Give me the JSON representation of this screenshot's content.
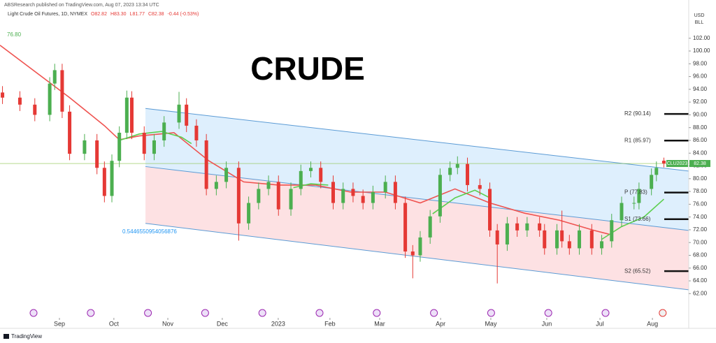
{
  "header": {
    "publisher": "ABSResearch published on TradingView.com, Aug 07, 2023 13:34 UTC",
    "symbol": "Light Crude Oil Futures, 1D, NYMEX",
    "ohlc": [
      "O82.82",
      "H83.30",
      "L81.77",
      "C82.38",
      "-0.44 (-0.53%)"
    ]
  },
  "currency": [
    "USD",
    "BLL"
  ],
  "footer": "TradingView",
  "chart_data": {
    "type": "candlestick",
    "title": "CRUDE",
    "up_color": "#4caf50",
    "down_color": "#e53935",
    "x": [
      1,
      8,
      14,
      20,
      22,
      25,
      28,
      34,
      39,
      42,
      45,
      48,
      51,
      53,
      58,
      62,
      66,
      72,
      75,
      79,
      83,
      87,
      91,
      96,
      100,
      104,
      108,
      112,
      117,
      121,
      125,
      129,
      134,
      138,
      142,
      146,
      150,
      155,
      159,
      163,
      166,
      169,
      173,
      177,
      181,
      184,
      188,
      193,
      197,
      200,
      204,
      208,
      212,
      217,
      219,
      224,
      226,
      229,
      233,
      238,
      242,
      246,
      250,
      255,
      257,
      262,
      264,
      267
    ],
    "open": [
      93.5,
      92.7,
      91.6,
      90.0,
      94.9,
      97.0,
      90.5,
      83.9,
      86.0,
      81.7,
      77.3,
      82.8,
      87.2,
      92.7,
      87.2,
      83.9,
      86.0,
      88.8,
      91.6,
      88.3,
      86.0,
      78.4,
      79.5,
      81.7,
      73.0,
      76.2,
      78.4,
      79.5,
      75.2,
      78.4,
      81.2,
      81.7,
      79.5,
      76.2,
      78.4,
      77.3,
      76.2,
      77.9,
      79.5,
      76.2,
      68.6,
      68.0,
      70.8,
      74.1,
      80.6,
      81.7,
      82.3,
      79.0,
      78.4,
      71.9,
      69.7,
      73.0,
      71.9,
      73.0,
      71.9,
      69.1,
      71.9,
      70.2,
      69.1,
      71.9,
      69.1,
      70.2,
      73.5,
      76.2,
      76.2,
      78.4,
      80.6,
      82.82
    ],
    "high": [
      94.5,
      93.7,
      92.6,
      95.9,
      98.0,
      98.0,
      91.5,
      87.0,
      87.0,
      82.7,
      83.8,
      88.2,
      93.8,
      93.7,
      88.2,
      87.0,
      89.8,
      93.6,
      92.6,
      89.3,
      87.0,
      80.5,
      82.7,
      82.7,
      77.2,
      79.4,
      80.5,
      80.5,
      79.4,
      82.2,
      82.7,
      82.7,
      80.5,
      79.4,
      79.4,
      78.3,
      78.9,
      80.5,
      80.5,
      77.2,
      69.6,
      71.8,
      75.1,
      81.6,
      82.7,
      83.5,
      83.3,
      80.0,
      79.4,
      72.9,
      74.0,
      74.0,
      74.0,
      74.0,
      72.9,
      72.9,
      75.0,
      71.2,
      72.9,
      72.9,
      71.2,
      74.5,
      77.2,
      77.2,
      79.4,
      81.6,
      82.7,
      83.3
    ],
    "low": [
      91.7,
      90.6,
      89.0,
      89.0,
      93.9,
      89.5,
      82.9,
      82.9,
      80.7,
      76.3,
      76.3,
      81.8,
      86.2,
      86.2,
      82.9,
      82.9,
      85.0,
      87.8,
      87.3,
      85.0,
      77.4,
      77.4,
      78.5,
      70.3,
      72.0,
      75.2,
      77.4,
      74.2,
      74.2,
      77.4,
      80.2,
      78.5,
      75.2,
      75.2,
      76.3,
      75.2,
      75.2,
      76.9,
      75.2,
      67.6,
      64.4,
      67.0,
      69.8,
      73.1,
      79.6,
      80.7,
      78.0,
      77.4,
      70.9,
      63.6,
      68.7,
      70.9,
      70.9,
      70.9,
      68.1,
      68.1,
      69.2,
      68.1,
      68.1,
      68.1,
      68.1,
      69.2,
      72.5,
      75.2,
      75.2,
      77.4,
      79.6,
      81.77
    ],
    "close": [
      92.7,
      91.6,
      90.0,
      94.9,
      97.0,
      90.5,
      83.9,
      86.0,
      81.7,
      77.3,
      82.8,
      87.2,
      92.7,
      87.2,
      83.9,
      86.0,
      88.8,
      91.6,
      88.3,
      86.0,
      78.4,
      79.5,
      81.7,
      73.0,
      76.2,
      78.4,
      79.5,
      75.2,
      78.4,
      81.2,
      81.7,
      79.5,
      76.2,
      78.4,
      77.3,
      76.2,
      77.9,
      79.5,
      76.2,
      68.6,
      68.0,
      70.8,
      74.1,
      80.6,
      81.7,
      82.3,
      79.0,
      78.4,
      71.9,
      69.7,
      73.0,
      71.9,
      73.0,
      71.9,
      69.1,
      71.9,
      70.2,
      69.1,
      71.9,
      69.1,
      70.2,
      73.5,
      76.2,
      76.2,
      78.4,
      80.6,
      81.7,
      82.38
    ],
    "lines": [
      {
        "color": "#ef5350",
        "x": [
          0,
          28,
          42,
          48,
          56,
          70,
          84,
          98,
          112,
          127,
          141,
          155,
          169,
          183,
          197,
          211,
          225,
          239,
          245
        ],
        "values": [
          100.9,
          92.7,
          88.3,
          86.1,
          86.7,
          87.2,
          82.8,
          79.5,
          79.0,
          79.0,
          77.9,
          77.9,
          76.2,
          78.4,
          76.2,
          74.6,
          73.5,
          71.9,
          71.3
        ]
      },
      {
        "color": "#5ccf4f",
        "x": [
          48,
          56,
          65,
          73,
          77,
          100,
          118,
          125,
          132,
          150,
          174,
          183,
          191,
          197,
          210,
          242,
          250,
          259,
          267
        ],
        "values": [
          86.0,
          87.0,
          87.4,
          86.5,
          85.5,
          null,
          78.6,
          79.2,
          79.0,
          null,
          74.5,
          77.0,
          78.2,
          77.0,
          null,
          70.5,
          72.5,
          74.0,
          76.8
        ]
      }
    ],
    "channel": {
      "x": [
        58.5,
        277
      ],
      "upper": [
        91.0,
        81.2
      ],
      "middle": [
        81.9,
        71.9
      ],
      "lower": [
        73.0,
        62.6
      ]
    },
    "annotations": [
      {
        "text": "76.80",
        "color": "#4caf50"
      },
      {
        "text": "0.5446550954056876",
        "color": "#2196f3"
      }
    ],
    "pivots": [
      {
        "label": "R2 (90.14)",
        "value": 90.14
      },
      {
        "label": "R1 (85.97)",
        "value": 85.97
      },
      {
        "label": "P (77.83)",
        "value": 77.83
      },
      {
        "label": "S1 (73.66)",
        "value": 73.66
      },
      {
        "label": "S2 (65.52)",
        "value": 65.52
      }
    ],
    "last_price": {
      "symbol": "CLU2023",
      "value": 82.38
    },
    "xlim": [
      0,
      277
    ],
    "ylim": [
      59.3,
      105.8
    ],
    "xticks": [
      {
        "value": 23.9,
        "label": "Sep"
      },
      {
        "value": 45.8,
        "label": "Oct"
      },
      {
        "value": 67.5,
        "label": "Nov"
      },
      {
        "value": 89.4,
        "label": "Dec"
      },
      {
        "value": 111.9,
        "label": "2023"
      },
      {
        "value": 132.7,
        "label": "Feb"
      },
      {
        "value": 152.7,
        "label": "Mar"
      },
      {
        "value": 177.2,
        "label": "Apr"
      },
      {
        "value": 197.4,
        "label": "May"
      },
      {
        "value": 219.9,
        "label": "Jun"
      },
      {
        "value": 241.3,
        "label": "Jul"
      },
      {
        "value": 262.4,
        "label": "Aug"
      }
    ],
    "yticks": [
      {
        "value": 62,
        "label": "62.00"
      },
      {
        "value": 64,
        "label": "64.00"
      },
      {
        "value": 66,
        "label": "66.00"
      },
      {
        "value": 68,
        "label": "68.00"
      },
      {
        "value": 70,
        "label": "70.00"
      },
      {
        "value": 72,
        "label": "72.00"
      },
      {
        "value": 74,
        "label": "74.00"
      },
      {
        "value": 76,
        "label": "76.00"
      },
      {
        "value": 78,
        "label": "78.00"
      },
      {
        "value": 80,
        "label": "80.00"
      },
      {
        "value": 82,
        "label": "82.00"
      },
      {
        "value": 84,
        "label": "84.00"
      },
      {
        "value": 86,
        "label": "86.00"
      },
      {
        "value": 88,
        "label": "88.00"
      },
      {
        "value": 90,
        "label": "90.00"
      },
      {
        "value": 92,
        "label": "92.00"
      },
      {
        "value": 94,
        "label": "94.00"
      },
      {
        "value": 96,
        "label": "96.00"
      },
      {
        "value": 98,
        "label": "98.00"
      },
      {
        "value": 100,
        "label": "100.00"
      },
      {
        "value": 102,
        "label": "102.00"
      }
    ]
  }
}
